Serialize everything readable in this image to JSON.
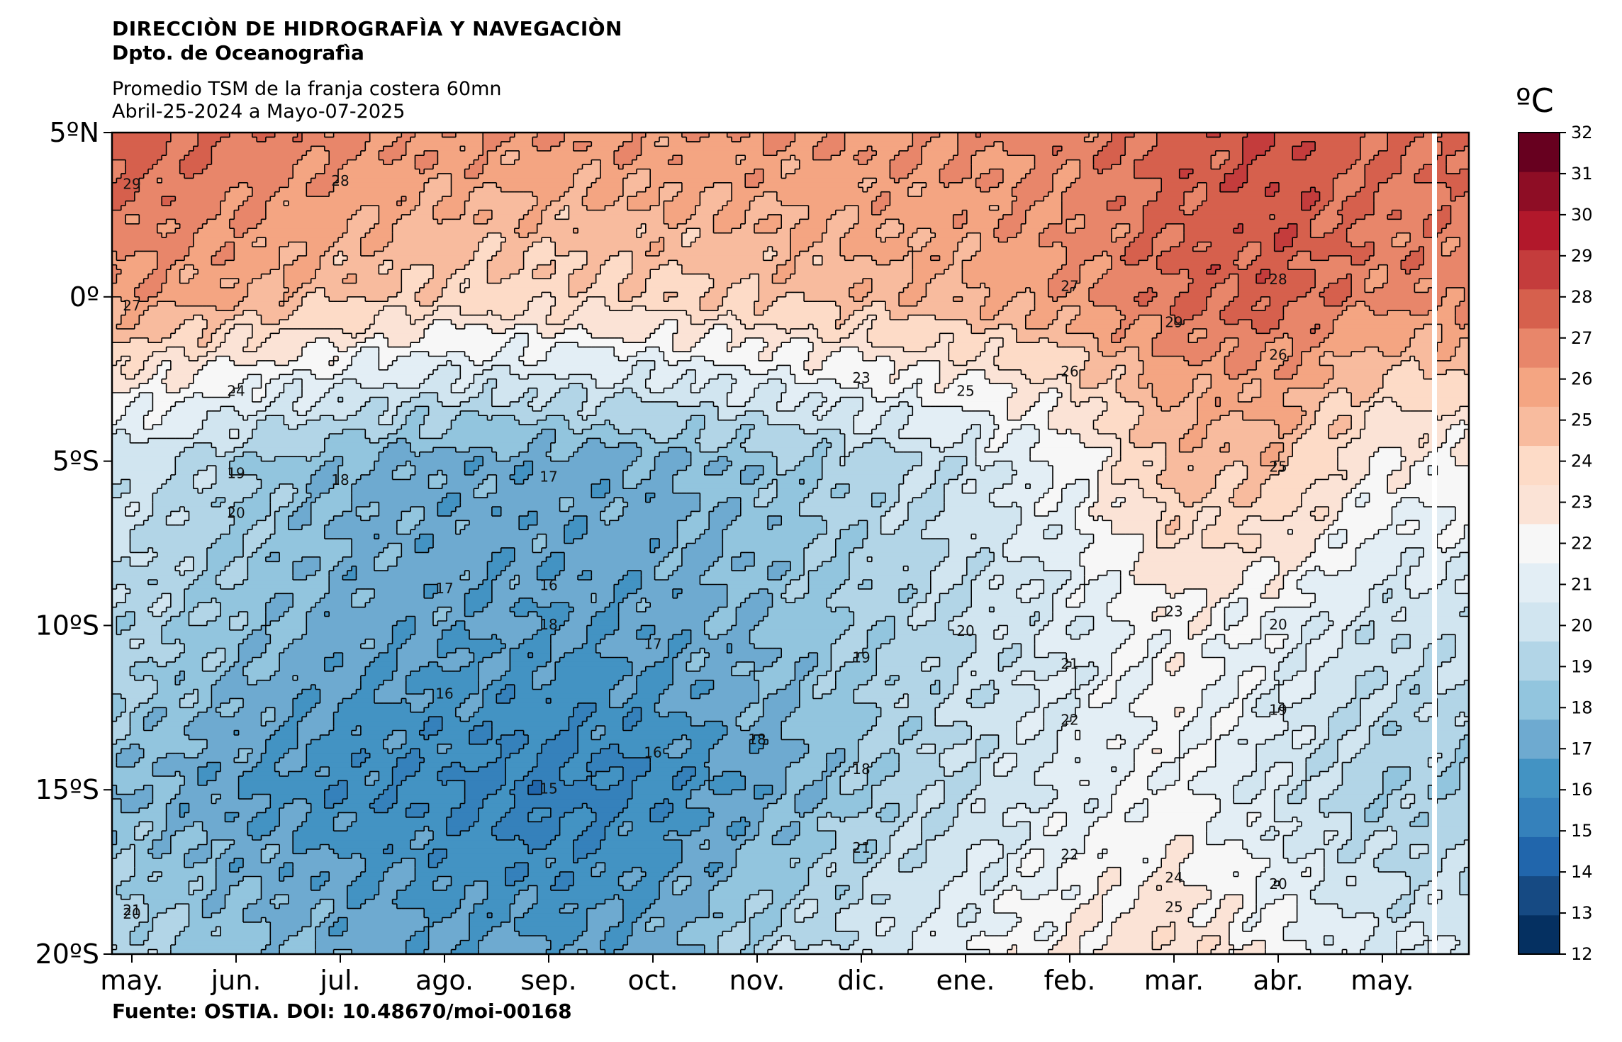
{
  "header": {
    "organization": "DIRECCIÒN DE HIDROGRAFÌA Y NAVEGACIÒN",
    "department": "Dpto. de Oceanografìa",
    "subtitle_line1": "Promedio TSM de la franja costera 60mn",
    "subtitle_line2": "Abril-25-2024 a Mayo-07-2025"
  },
  "source": "Fuente: OSTIA. DOI: 10.48670/moi-00168",
  "chart_data": {
    "type": "heatmap",
    "title": "Promedio TSM de la franja costera 60mn",
    "subtitle": "Abril-25-2024 a Mayo-07-2025",
    "xlabel": "",
    "ylabel": "",
    "x_ticks": [
      "may.",
      "jun.",
      "jul.",
      "ago.",
      "sep.",
      "oct.",
      "nov.",
      "dic.",
      "ene.",
      "feb.",
      "mar.",
      "abr.",
      "may."
    ],
    "x_range": [
      "2024-04-25",
      "2025-05-07"
    ],
    "y_ticks": [
      "5ºN",
      "0º",
      "5ºS",
      "10ºS",
      "15ºS",
      "20ºS"
    ],
    "y_range": [
      -20,
      5
    ],
    "colorbar": {
      "unit": "ºC",
      "min": 12,
      "max": 32,
      "ticks": [
        "12",
        "13",
        "14",
        "15",
        "16",
        "17",
        "18",
        "19",
        "20",
        "21",
        "22",
        "23",
        "24",
        "25",
        "26",
        "27",
        "28",
        "29",
        "30",
        "31",
        "32"
      ],
      "colors": [
        "#053061",
        "#164a83",
        "#2166ac",
        "#3581bb",
        "#4393c3",
        "#6eaad0",
        "#92c5de",
        "#b2d5e7",
        "#d1e5f0",
        "#e3eef5",
        "#f7f7f7",
        "#fbe3d6",
        "#fddbc7",
        "#f8bb9e",
        "#f4a582",
        "#e8866a",
        "#d6604d",
        "#c43c3c",
        "#b2182b",
        "#8e0d25",
        "#67001f"
      ]
    },
    "seasonal_profile": {
      "months": [
        "may.",
        "jun.",
        "jul.",
        "ago.",
        "sep.",
        "oct.",
        "nov.",
        "dic.",
        "ene.",
        "feb.",
        "mar.",
        "abr.",
        "may."
      ],
      "sst_at_5N": [
        28.8,
        28.3,
        27.6,
        27.3,
        27.2,
        27.2,
        27.2,
        27.3,
        27.4,
        27.8,
        28.7,
        29.3,
        28.4
      ],
      "sst_at_0": [
        27.0,
        26.3,
        25.6,
        24.9,
        24.8,
        25.0,
        25.4,
        25.9,
        26.3,
        27.1,
        28.4,
        28.7,
        27.6
      ],
      "sst_at_5S": [
        20.3,
        19.0,
        17.8,
        17.3,
        17.2,
        17.5,
        18.2,
        19.2,
        20.2,
        22.0,
        25.2,
        25.2,
        22.6
      ],
      "sst_at_10S": [
        19.3,
        18.3,
        17.3,
        17.0,
        16.8,
        17.0,
        17.8,
        18.8,
        19.7,
        20.8,
        22.4,
        21.4,
        20.0
      ],
      "sst_at_15S": [
        17.8,
        16.7,
        16.0,
        15.7,
        15.2,
        15.8,
        17.0,
        18.5,
        19.8,
        21.0,
        22.0,
        20.3,
        18.8
      ],
      "sst_at_20S": [
        19.5,
        18.3,
        17.5,
        17.0,
        16.8,
        17.3,
        19.2,
        20.3,
        21.5,
        22.8,
        23.8,
        22.3,
        20.7
      ]
    },
    "contour_interval": 1,
    "contour_labels": [
      {
        "text": "29",
        "month": "may.",
        "lat": 3.4
      },
      {
        "text": "28",
        "month": "jul.",
        "lat": 3.5
      },
      {
        "text": "27",
        "month": "may.",
        "lat": -0.3
      },
      {
        "text": "24",
        "month": "jun.",
        "lat": -2.9
      },
      {
        "text": "19",
        "month": "jun.",
        "lat": -5.4
      },
      {
        "text": "20",
        "month": "jun.",
        "lat": -6.6
      },
      {
        "text": "18",
        "month": "jul.",
        "lat": -5.6
      },
      {
        "text": "17",
        "month": "sep.",
        "lat": -5.5
      },
      {
        "text": "17",
        "month": "ago.",
        "lat": -8.9
      },
      {
        "text": "16",
        "month": "sep.",
        "lat": -8.8
      },
      {
        "text": "18",
        "month": "sep.",
        "lat": -10.0
      },
      {
        "text": "17",
        "month": "oct.",
        "lat": -10.6
      },
      {
        "text": "16",
        "month": "ago.",
        "lat": -12.1
      },
      {
        "text": "16",
        "month": "oct.",
        "lat": -13.9
      },
      {
        "text": "15",
        "month": "sep.",
        "lat": -15.0
      },
      {
        "text": "18",
        "month": "nov.",
        "lat": -13.5
      },
      {
        "text": "19",
        "month": "dic.",
        "lat": -11.0
      },
      {
        "text": "18",
        "month": "dic.",
        "lat": -14.4
      },
      {
        "text": "20",
        "month": "ene.",
        "lat": -10.2
      },
      {
        "text": "21",
        "month": "dic.",
        "lat": -16.8
      },
      {
        "text": "20",
        "month": "abr.",
        "lat": -10.0
      },
      {
        "text": "22",
        "month": "feb.",
        "lat": -12.9
      },
      {
        "text": "21",
        "month": "feb.",
        "lat": -11.2
      },
      {
        "text": "23",
        "month": "mar.",
        "lat": -9.6
      },
      {
        "text": "24",
        "month": "mar.",
        "lat": -17.7
      },
      {
        "text": "25",
        "month": "mar.",
        "lat": -18.6
      },
      {
        "text": "22",
        "month": "feb.",
        "lat": -17.0
      },
      {
        "text": "23",
        "month": "dic.",
        "lat": -2.5
      },
      {
        "text": "25",
        "month": "ene.",
        "lat": -2.9
      },
      {
        "text": "26",
        "month": "feb.",
        "lat": -2.3
      },
      {
        "text": "27",
        "month": "feb.",
        "lat": 0.3
      },
      {
        "text": "29",
        "month": "mar.",
        "lat": -0.8
      },
      {
        "text": "28",
        "month": "abr.",
        "lat": 0.5
      },
      {
        "text": "26",
        "month": "abr.",
        "lat": -1.8
      },
      {
        "text": "25",
        "month": "abr.",
        "lat": -5.2
      },
      {
        "text": "19",
        "month": "abr.",
        "lat": -12.6
      },
      {
        "text": "20",
        "month": "abr.",
        "lat": -17.9
      },
      {
        "text": "21",
        "month": "may.",
        "lat": -18.7
      },
      {
        "text": "20",
        "month": "may.",
        "lat": -18.8
      }
    ]
  }
}
